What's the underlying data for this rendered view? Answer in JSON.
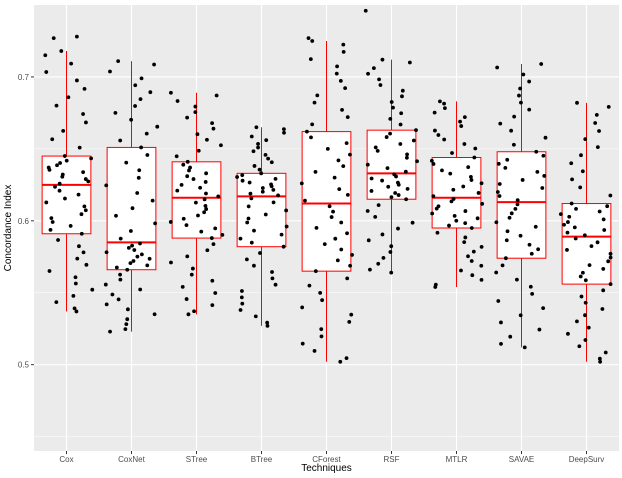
{
  "chart_data": {
    "type": "boxplot_with_jitter",
    "xlabel": "Techniques",
    "ylabel": "Concordance Index",
    "categories": [
      "Cox",
      "CoxNet",
      "STree",
      "BTree",
      "CForest",
      "RSF",
      "MTLR",
      "SAVAE",
      "DeepSurv"
    ],
    "y_ticks": [
      0.5,
      0.6,
      0.7
    ],
    "y_tick_labels": [
      "0.5",
      "0.6",
      "0.7"
    ],
    "ylim": [
      0.44,
      0.75
    ],
    "grid": true,
    "colors": {
      "panel_background": "#ebebeb",
      "grid_major": "#ffffff",
      "box_outline": "#ff0000",
      "box_fill": "#ffffff",
      "points": "#000000"
    },
    "boxes": [
      {
        "name": "Cox",
        "min": 0.537,
        "q1": 0.591,
        "median": 0.625,
        "q3": 0.645,
        "max": 0.718
      },
      {
        "name": "CoxNet",
        "min": 0.523,
        "q1": 0.566,
        "median": 0.585,
        "q3": 0.651,
        "max": 0.711
      },
      {
        "name": "STree",
        "min": 0.535,
        "q1": 0.588,
        "median": 0.616,
        "q3": 0.641,
        "max": 0.689
      },
      {
        "name": "BTree",
        "min": 0.527,
        "q1": 0.582,
        "median": 0.617,
        "q3": 0.633,
        "max": 0.665
      },
      {
        "name": "CForest",
        "min": 0.502,
        "q1": 0.565,
        "median": 0.612,
        "q3": 0.662,
        "max": 0.725
      },
      {
        "name": "RSF",
        "min": 0.564,
        "q1": 0.615,
        "median": 0.633,
        "q3": 0.663,
        "max": 0.712
      },
      {
        "name": "MTLR",
        "min": 0.554,
        "q1": 0.595,
        "median": 0.616,
        "q3": 0.644,
        "max": 0.683
      },
      {
        "name": "SAVAE",
        "min": 0.512,
        "q1": 0.574,
        "median": 0.613,
        "q3": 0.648,
        "max": 0.709
      },
      {
        "name": "DeepSurv",
        "min": 0.502,
        "q1": 0.556,
        "median": 0.589,
        "q3": 0.612,
        "max": 0.682
      }
    ],
    "points_per_group": 50,
    "outlier_points": [
      {
        "group": "Cox",
        "values": [
          0.728,
          0.727
        ]
      },
      {
        "group": "CForest",
        "values": [
          0.727
        ]
      },
      {
        "group": "RSF",
        "values": [
          0.746
        ]
      }
    ]
  }
}
